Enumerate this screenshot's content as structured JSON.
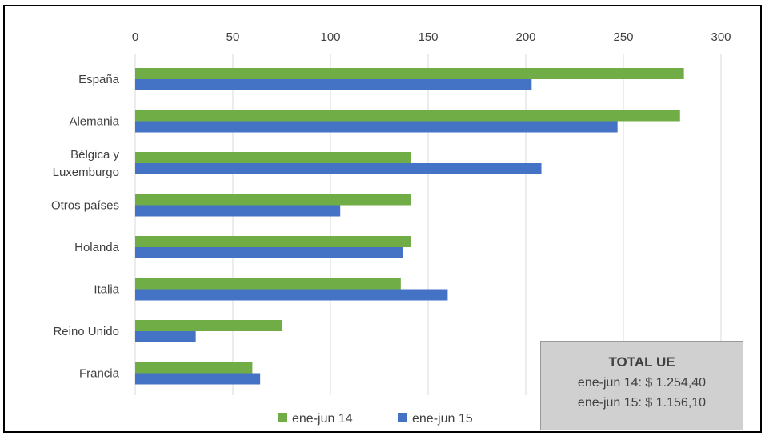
{
  "colors": {
    "series1": "#70ad47",
    "series2": "#4472c4",
    "grid": "#d9d9d9",
    "text": "#404040"
  },
  "total_box": {
    "title": "TOTAL UE",
    "line1": "ene-jun 14: $ 1.254,40",
    "line2": "ene-jun 15: $ 1.156,10"
  },
  "chart_data": {
    "type": "bar",
    "orientation": "horizontal",
    "categories": [
      [
        "España"
      ],
      [
        "Alemania"
      ],
      [
        "Bélgica y",
        "Luxemburgo"
      ],
      [
        "Otros países"
      ],
      [
        "Holanda"
      ],
      [
        "Italia"
      ],
      [
        "Reino Unido"
      ],
      [
        "Francia"
      ]
    ],
    "series": [
      {
        "name": "ene-jun 14",
        "values": [
          281,
          279,
          141,
          141,
          141,
          136,
          75,
          60
        ]
      },
      {
        "name": "ene-jun 15",
        "values": [
          203,
          247,
          208,
          105,
          137,
          160,
          31,
          64
        ]
      }
    ],
    "xlim": [
      0,
      300
    ],
    "xticks": [
      0,
      50,
      100,
      150,
      200,
      250,
      300
    ],
    "x_axis_position": "top",
    "grid": true,
    "legend_position": "bottom"
  }
}
